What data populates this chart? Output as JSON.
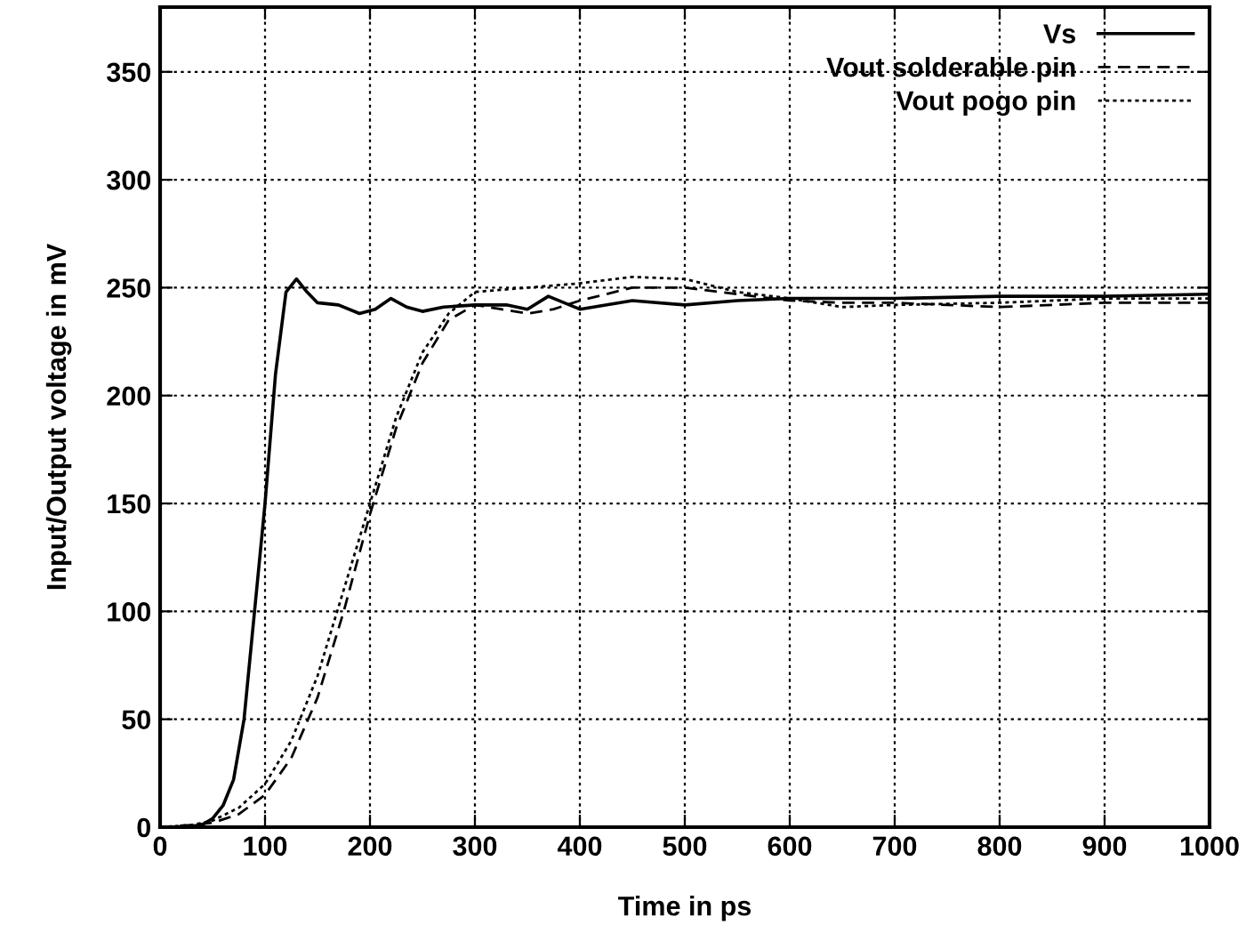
{
  "chart_data": {
    "type": "line",
    "xlabel": "Time in ps",
    "ylabel": "Input/Output voltage in mV",
    "xlim": [
      0,
      1000
    ],
    "ylim": [
      0,
      380
    ],
    "xticks": [
      0,
      100,
      200,
      300,
      400,
      500,
      600,
      700,
      800,
      900,
      1000
    ],
    "yticks": [
      0,
      50,
      100,
      150,
      200,
      250,
      300,
      350
    ],
    "grid": true,
    "legend": "top right",
    "marker": "none",
    "series": [
      {
        "name": "Vs",
        "color": "#000000",
        "line_style": "solid",
        "x": [
          0,
          20,
          40,
          50,
          60,
          70,
          80,
          90,
          100,
          110,
          120,
          130,
          140,
          150,
          170,
          190,
          205,
          220,
          235,
          250,
          270,
          300,
          330,
          350,
          370,
          400,
          450,
          500,
          550,
          600,
          650,
          700,
          800,
          900,
          1000
        ],
        "values": [
          0,
          0,
          1,
          4,
          10,
          22,
          50,
          100,
          150,
          210,
          248,
          254,
          248,
          243,
          242,
          238,
          240,
          245,
          241,
          239,
          241,
          242,
          242,
          240,
          246,
          240,
          244,
          242,
          244,
          245,
          245,
          245,
          246,
          246,
          247
        ]
      },
      {
        "name": "Vout solderable pin",
        "color": "#000000",
        "line_style": "dashed",
        "x": [
          0,
          30,
          50,
          75,
          100,
          125,
          150,
          175,
          200,
          225,
          250,
          275,
          300,
          325,
          350,
          375,
          400,
          450,
          500,
          550,
          600,
          650,
          700,
          800,
          900,
          1000
        ],
        "values": [
          0,
          1,
          2,
          6,
          15,
          32,
          60,
          100,
          145,
          185,
          215,
          235,
          242,
          240,
          238,
          240,
          244,
          250,
          250,
          247,
          244,
          243,
          243,
          241,
          243,
          243
        ]
      },
      {
        "name": "Vout pogo pin",
        "color": "#000000",
        "line_style": "dotted",
        "x": [
          0,
          30,
          50,
          75,
          100,
          125,
          150,
          175,
          200,
          225,
          250,
          275,
          300,
          325,
          350,
          400,
          450,
          500,
          550,
          600,
          650,
          700,
          800,
          900,
          1000
        ],
        "values": [
          0,
          1,
          3,
          9,
          20,
          40,
          70,
          110,
          150,
          190,
          220,
          238,
          248,
          249,
          250,
          252,
          255,
          254,
          248,
          245,
          241,
          242,
          243,
          245,
          245
        ]
      }
    ]
  }
}
